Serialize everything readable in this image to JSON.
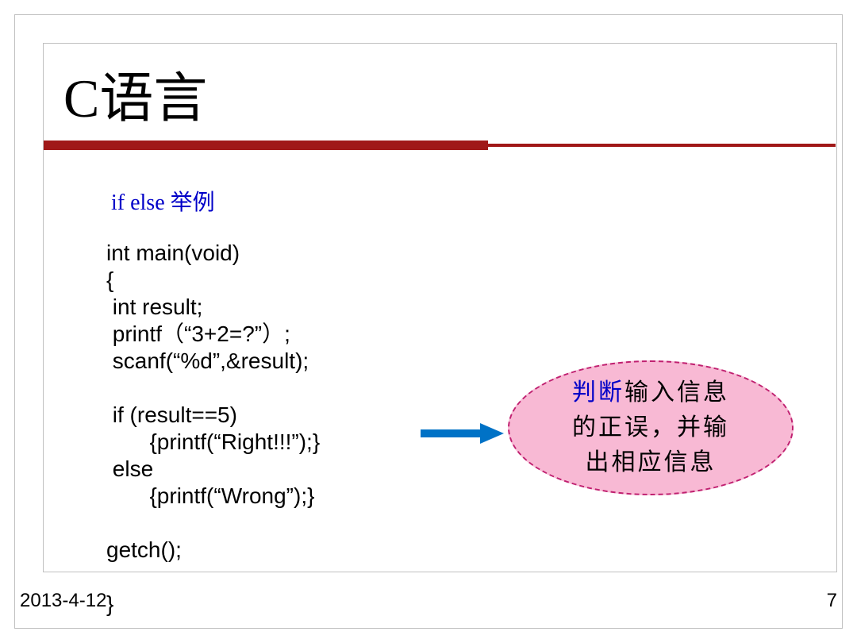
{
  "title": "C语言",
  "subtitle": "if else 举例",
  "code_lines": {
    "l1": "int main(void)",
    "l2": "{",
    "l3": " int result;",
    "l4": " printf（“3+2=?”）;",
    "l5": " scanf(“%d”,&result);",
    "l6": "",
    "l7": " if (result==5)",
    "l8": "       {printf(“Right!!!”);}",
    "l9": " else",
    "l10": "       {printf(“Wrong”);}",
    "l11": "",
    "l12": "getch();",
    "l13": "",
    "l14": "}"
  },
  "callout": {
    "blue_word": "判断",
    "rest_line1": "输入信息",
    "line2": "的正误，并输",
    "line3": "出相应信息"
  },
  "footer": {
    "date": "2013-4-12",
    "page": "7"
  },
  "colors": {
    "title_underline": "#a01818",
    "subtitle": "#0000c8",
    "arrow": "#0072c6",
    "callout_bg": "#f8b9d4",
    "callout_border": "#c02070",
    "callout_blue": "#0000c8",
    "border": "#c0c0c0"
  }
}
